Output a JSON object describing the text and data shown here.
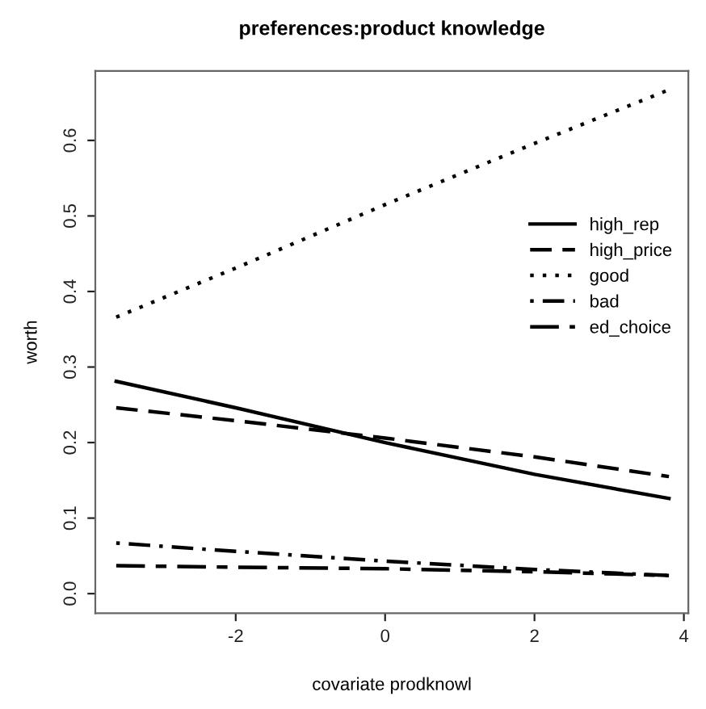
{
  "chart_data": {
    "type": "line",
    "title": "preferences:product knowledge",
    "xlabel": "covariate prodknowl",
    "ylabel": "worth",
    "x": [
      -3.6,
      -2,
      0,
      2,
      3.8
    ],
    "series": [
      {
        "name": "high_rep",
        "color": "#000000",
        "line_style": "solid",
        "values": [
          0.281,
          0.246,
          0.2,
          0.158,
          0.126
        ]
      },
      {
        "name": "high_price",
        "color": "#000000",
        "line_style": "dashed",
        "values": [
          0.246,
          0.229,
          0.206,
          0.181,
          0.155
        ]
      },
      {
        "name": "good",
        "color": "#000000",
        "line_style": "dotted",
        "values": [
          0.366,
          0.431,
          0.515,
          0.596,
          0.667
        ]
      },
      {
        "name": "bad",
        "color": "#000000",
        "line_style": "dashdot",
        "values": [
          0.067,
          0.056,
          0.043,
          0.032,
          0.024
        ]
      },
      {
        "name": "ed_choice",
        "color": "#000000",
        "line_style": "longdash",
        "values": [
          0.037,
          0.035,
          0.033,
          0.029,
          0.024
        ]
      }
    ],
    "xlim": [
      -3.88,
      4.06
    ],
    "ylim": [
      -0.026,
      0.692
    ],
    "xticks": [
      -2,
      0,
      2,
      4
    ],
    "yticks": [
      {
        "value": 0,
        "label": "0.0"
      },
      0.1,
      0.2,
      0.3,
      0.4,
      0.5,
      0.6
    ],
    "legend": "center right",
    "grid": false,
    "marker": "none"
  }
}
